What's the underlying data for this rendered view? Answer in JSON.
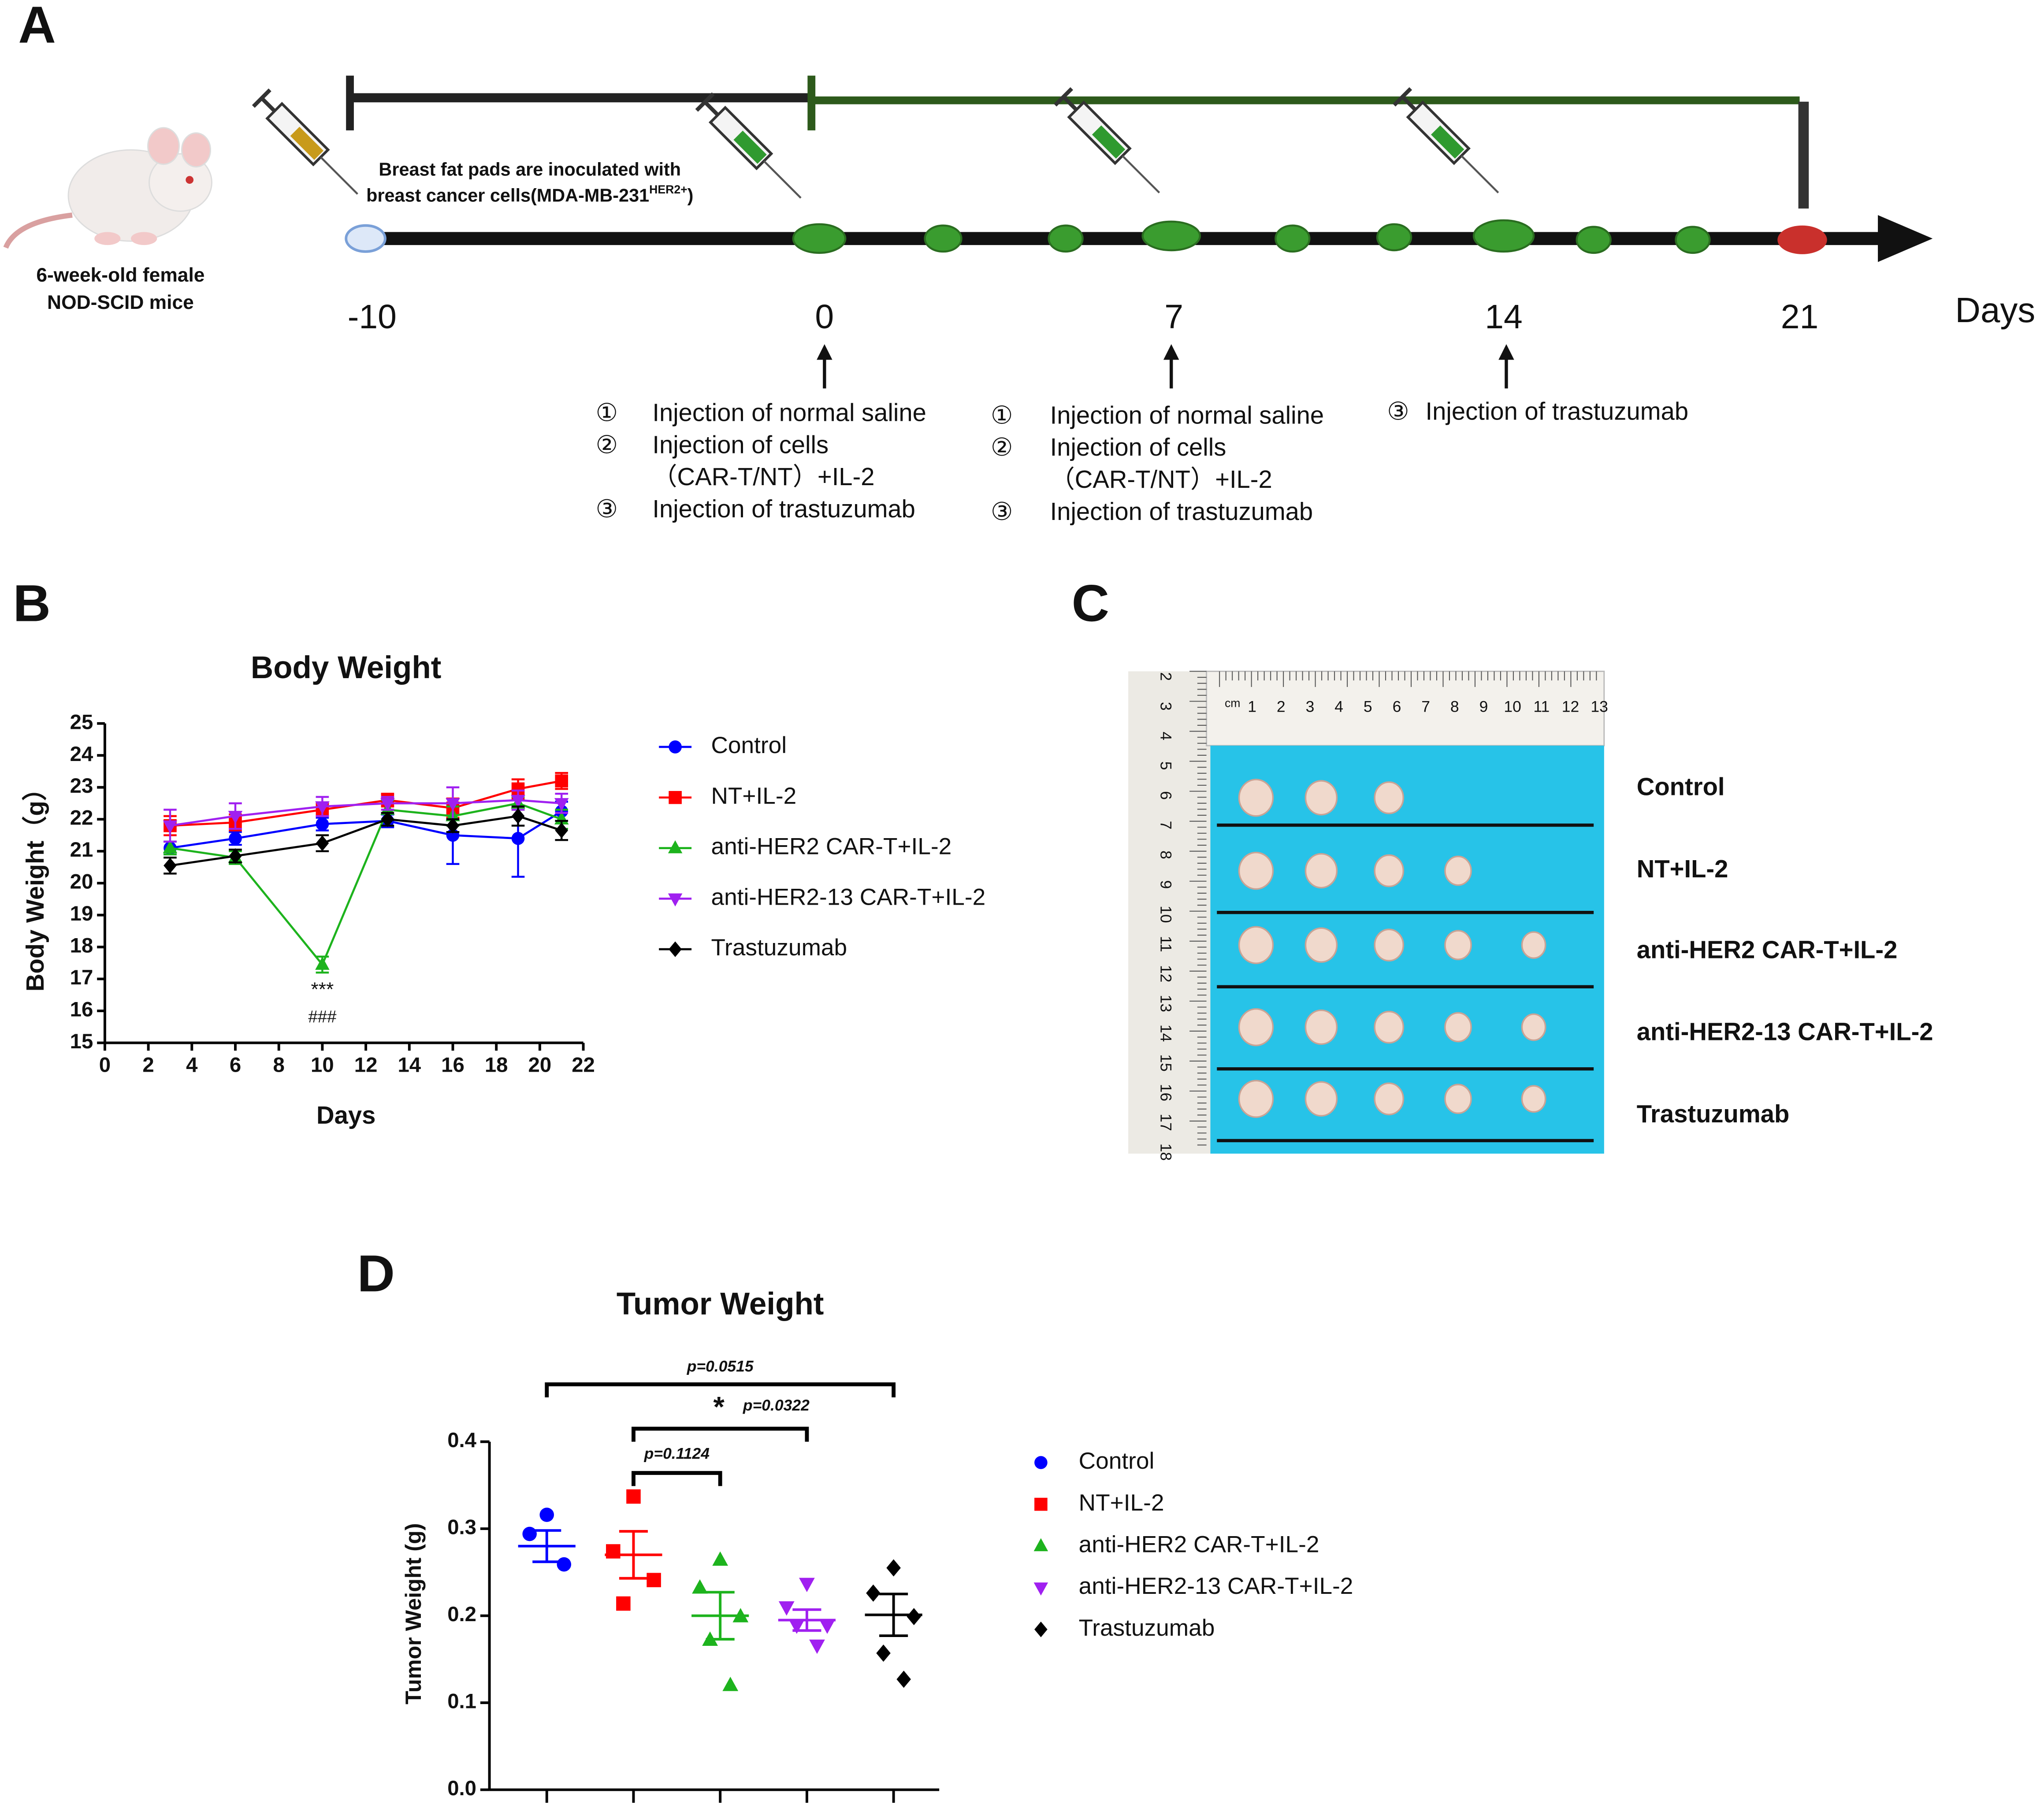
{
  "panel_labels": [
    "A",
    "B",
    "C",
    "D"
  ],
  "timeline": {
    "mouse_label": [
      "6-week-old female",
      "NOD-SCID mice"
    ],
    "inoculation": [
      "Breast fat pads are inoculated with",
      "breast cancer cells(MDA-MB-231",
      "HER2+",
      ")"
    ],
    "days": [
      "-10",
      "0",
      "7",
      "14",
      "21"
    ],
    "unit": "Days",
    "steps": [
      [
        {
          "num": "①",
          "text": [
            "Injection of normal saline"
          ]
        },
        {
          "num": "②",
          "text": [
            "Injection of cells",
            "（CAR-T/NT）+IL-2"
          ]
        },
        {
          "num": "③",
          "text": [
            "Injection of trastuzumab"
          ]
        }
      ],
      [
        {
          "num": "①",
          "text": [
            "Injection of normal saline"
          ]
        },
        {
          "num": "②",
          "text": [
            "Injection of cells",
            "（CAR-T/NT）+IL-2"
          ]
        },
        {
          "num": "③",
          "text": [
            "Injection of trastuzumab"
          ]
        }
      ],
      [
        {
          "num": "③",
          "text": [
            "Injection of trastuzumab"
          ]
        }
      ]
    ]
  },
  "photo": {
    "ruler_unit": "cm",
    "ruler_top": [
      "1",
      "2",
      "3",
      "4",
      "5",
      "6",
      "7",
      "8",
      "9",
      "10",
      "11",
      "12",
      "13"
    ],
    "ruler_left": [
      "2",
      "3",
      "4",
      "5",
      "6",
      "7",
      "8",
      "9",
      "10",
      "11",
      "12",
      "13",
      "14",
      "15",
      "16",
      "17",
      "18"
    ],
    "rows": [
      "Control",
      "NT+IL-2",
      "anti-HER2 CAR-T+IL-2",
      "anti-HER2-13 CAR-T+IL-2",
      "Trastuzumab"
    ]
  },
  "chart_data": [
    {
      "type": "line",
      "title": "Body Weight",
      "x_label": "Days",
      "y_label": "Body Weight（g）",
      "x": [
        3,
        6,
        10,
        13,
        16,
        19,
        21
      ],
      "xlim": [
        0,
        22
      ],
      "xticks": [
        0,
        2,
        4,
        6,
        8,
        10,
        12,
        14,
        16,
        18,
        20,
        22
      ],
      "ylim": [
        15,
        25
      ],
      "yticks": [
        15,
        16,
        17,
        18,
        19,
        20,
        21,
        22,
        23,
        24,
        25
      ],
      "series": [
        {
          "name": "Control",
          "color": "#0000ff",
          "marker": "circle",
          "values": [
            21.1,
            21.4,
            21.85,
            21.95,
            21.5,
            21.4,
            22.25
          ],
          "errors": [
            0.2,
            0.2,
            0.2,
            0.2,
            0.9,
            1.2,
            0.3
          ]
        },
        {
          "name": "NT+IL-2",
          "color": "#ff0000",
          "marker": "square",
          "values": [
            21.8,
            21.9,
            22.3,
            22.6,
            22.35,
            22.95,
            23.2
          ],
          "errors": [
            0.3,
            0.25,
            0.2,
            0.2,
            0.3,
            0.3,
            0.25
          ]
        },
        {
          "name": "anti-HER2 CAR-T+IL-2",
          "color": "#1db31d",
          "marker": "triangle-up",
          "values": [
            21.1,
            20.8,
            17.45,
            22.3,
            22.1,
            22.5,
            22.0
          ],
          "errors": [
            0.2,
            0.2,
            0.25,
            0.3,
            0.3,
            0.2,
            0.3
          ]
        },
        {
          "name": "anti-HER2-13 CAR-T+IL-2",
          "color": "#a020f0",
          "marker": "triangle-down",
          "values": [
            21.8,
            22.1,
            22.4,
            22.5,
            22.5,
            22.6,
            22.5
          ],
          "errors": [
            0.5,
            0.4,
            0.3,
            0.2,
            0.5,
            0.3,
            0.3
          ]
        },
        {
          "name": "Trastuzumab",
          "color": "#000000",
          "marker": "diamond",
          "values": [
            20.55,
            20.85,
            21.25,
            22.0,
            21.8,
            22.1,
            21.65
          ],
          "errors": [
            0.25,
            0.2,
            0.25,
            0.2,
            0.2,
            0.3,
            0.3
          ]
        }
      ],
      "annotations": [
        "***",
        "###"
      ]
    },
    {
      "type": "scatter",
      "title": "Tumor  Weight",
      "y_label": "Tumor Weight (g)",
      "ylim": [
        0,
        0.4
      ],
      "yticks": [
        {
          "value": 0,
          "label": "0.0"
        },
        0.1,
        0.2,
        0.3,
        0.4
      ],
      "series": [
        {
          "name": "Control",
          "color": "#0000ff",
          "marker": "circle",
          "values": [
            0.316,
            0.294,
            0.259
          ],
          "mean": 0.28,
          "sem": 0.018
        },
        {
          "name": "NT+IL-2",
          "color": "#ff0000",
          "marker": "square",
          "values": [
            0.337,
            0.274,
            0.241,
            0.214
          ],
          "mean": 0.27,
          "sem": 0.027
        },
        {
          "name": "anti-HER2 CAR-T+IL-2",
          "color": "#1db31d",
          "marker": "triangle-up",
          "values": [
            0.264,
            0.232,
            0.199,
            0.172,
            0.12
          ],
          "mean": 0.2,
          "sem": 0.027
        },
        {
          "name": "anti-HER2-13 CAR-T+IL-2",
          "color": "#a020f0",
          "marker": "triangle-down",
          "values": [
            0.237,
            0.21,
            0.189,
            0.189,
            0.166
          ],
          "mean": 0.195,
          "sem": 0.012
        },
        {
          "name": "Trastuzumab",
          "color": "#000000",
          "marker": "diamond",
          "values": [
            0.255,
            0.226,
            0.199,
            0.157,
            0.127
          ],
          "mean": 0.201,
          "sem": 0.024
        }
      ],
      "comparisons": [
        "p=0.0515",
        "p=0.0322",
        "p=0.1124"
      ],
      "significance": "*"
    }
  ]
}
